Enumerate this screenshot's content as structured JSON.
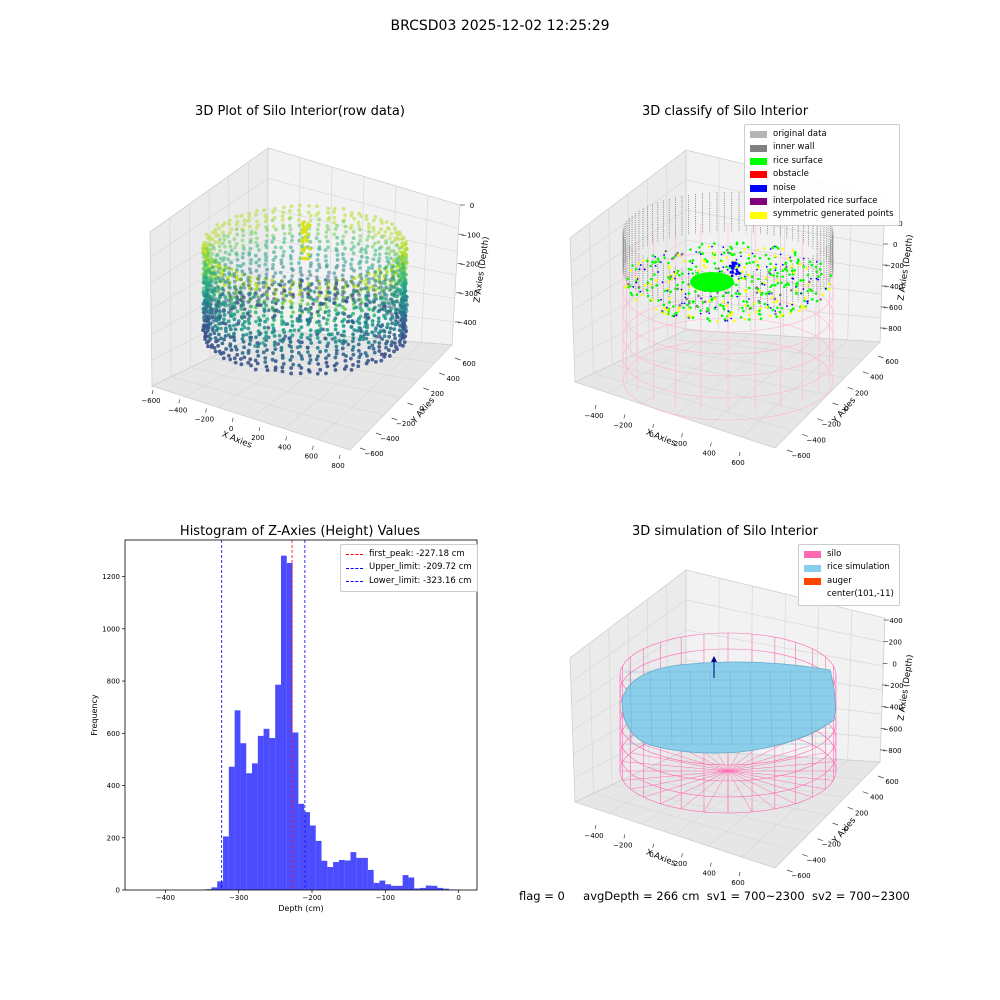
{
  "figure": {
    "suptitle": "BRCSD03 2025-12-02 12:25:29"
  },
  "panels": {
    "raw": {
      "title": "3D Plot of Silo Interior(row data)",
      "xlabel": "X Axies",
      "ylabel": "Y Axies",
      "zlabel": "Z Axies (Depth)",
      "x_ticks": [
        "−600",
        "−400",
        "−200",
        "0",
        "200",
        "400",
        "600",
        "800"
      ],
      "y_ticks": [
        "−600",
        "−400",
        "−200",
        "0",
        "200",
        "400",
        "600"
      ],
      "z_ticks": [
        "0",
        "−100",
        "−200",
        "−300",
        "−400"
      ]
    },
    "classify": {
      "title": "3D classify of Silo Interior",
      "xlabel": "X Axies",
      "ylabel": "Y Axies",
      "zlabel": "Z Axies (Depth)",
      "x_ticks": [
        "−400",
        "−200",
        "0",
        "200",
        "400",
        "600"
      ],
      "y_ticks": [
        "−600",
        "−400",
        "−200",
        "0",
        "200",
        "400",
        "600"
      ],
      "z_ticks": [
        "200",
        "0",
        "−200",
        "−400",
        "−600",
        "−800"
      ],
      "legend": [
        {
          "label": "original data",
          "color": "#b5b5b5"
        },
        {
          "label": "inner wall",
          "color": "#808080"
        },
        {
          "label": "rice surface",
          "color": "#00ff00"
        },
        {
          "label": "obstacle",
          "color": "#ff0000"
        },
        {
          "label": "noise",
          "color": "#0000ff"
        },
        {
          "label": "interpolated rice surface",
          "color": "#800080"
        },
        {
          "label": "symmetric generated points",
          "color": "#ffff00"
        }
      ]
    },
    "simulation": {
      "title": "3D simulation of Silo Interior",
      "xlabel": "X Axies",
      "ylabel": "Y Axies",
      "zlabel": "Z Axies (Depth)",
      "x_ticks": [
        "−400",
        "−200",
        "0",
        "200",
        "400",
        "600"
      ],
      "y_ticks": [
        "−600",
        "−400",
        "−200",
        "0",
        "200",
        "400",
        "600"
      ],
      "z_ticks": [
        "400",
        "200",
        "0",
        "−200",
        "−400",
        "−600",
        "−800"
      ],
      "legend": [
        {
          "label": "silo",
          "color": "#ff69b4"
        },
        {
          "label": "rice simulation",
          "color": "#87ceeb"
        },
        {
          "label": "auger",
          "color": "#ff4500"
        },
        {
          "label": "center(101,-11)",
          "color": ""
        }
      ]
    }
  },
  "status_bar": {
    "flag": "flag = 0",
    "avg_depth": "avgDepth = 266 cm",
    "sv1": "sv1 = 700~2300",
    "sv2": "sv2 = 700~2300"
  },
  "chart_data": [
    {
      "type": "bar",
      "title": "Histogram of Z-Axies (Height) Values",
      "xlabel": "Depth (cm)",
      "ylabel": "Frequency",
      "xlim": [
        -455,
        25
      ],
      "ylim": [
        0,
        1340
      ],
      "x_ticks": [
        -400,
        -300,
        -200,
        -100,
        0
      ],
      "y_ticks": [
        0,
        200,
        400,
        600,
        800,
        1000,
        1200
      ],
      "bin_width": 7.9,
      "bin_starts": [
        -345,
        -337.1,
        -329.2,
        -321.3,
        -313.4,
        -305.5,
        -297.6,
        -289.7,
        -281.8,
        -273.9,
        -266,
        -258.1,
        -250.2,
        -242.3,
        -234.4,
        -226.5,
        -218.6,
        -210.7,
        -202.8,
        -194.9,
        -187,
        -179.1,
        -171.2,
        -163.3,
        -155.4,
        -147.5,
        -139.6,
        -131.7,
        -123.8,
        -115.9,
        -108,
        -100.1,
        -92.2,
        -84.3,
        -76.4,
        -68.5,
        -60.6,
        -52.7,
        -44.8,
        -36.9,
        -29,
        -21.1,
        -13.2,
        -5.3
      ],
      "values": [
        3,
        10,
        33,
        205,
        472,
        688,
        562,
        447,
        485,
        590,
        617,
        582,
        786,
        1280,
        1252,
        603,
        330,
        298,
        247,
        188,
        112,
        88,
        107,
        115,
        113,
        145,
        123,
        123,
        77,
        27,
        36,
        22,
        16,
        16,
        57,
        48,
        6,
        8,
        17,
        16,
        8,
        5,
        2,
        1
      ],
      "series": [
        {
          "name": "",
          "color": "#0000ff"
        }
      ],
      "vlines": [
        {
          "label": "first_peak: -227.18 cm",
          "x": -227.18,
          "color": "#ff0000"
        },
        {
          "label": "Upper_limit: -209.72 cm",
          "x": -209.72,
          "color": "#0000ff"
        },
        {
          "label": "Lower_limit: -323.16 cm",
          "x": -323.16,
          "color": "#0000ff"
        }
      ],
      "legend_position": "upper right",
      "grid": false
    }
  ]
}
